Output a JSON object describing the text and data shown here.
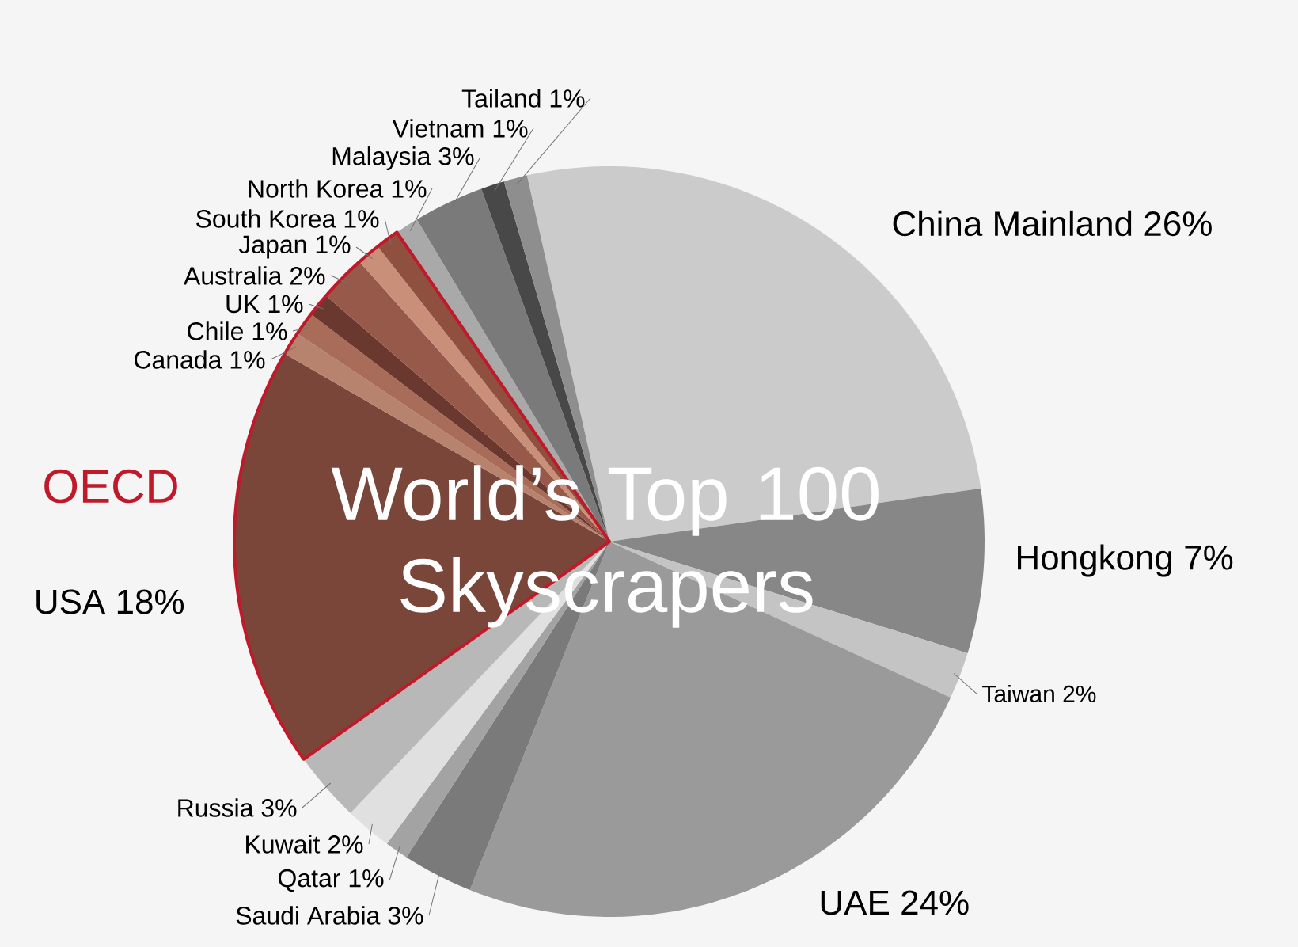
{
  "chart_data": {
    "type": "pie",
    "title": "World’s Top 100 Skyscrapers",
    "categories": [
      "China Mainland",
      "Hongkong",
      "Taiwan",
      "UAE",
      "Saudi Arabia",
      "Qatar",
      "Kuwait",
      "Russia",
      "USA",
      "Canada",
      "Chile",
      "UK",
      "Australia",
      "Japan",
      "South Korea",
      "North Korea",
      "Malaysia",
      "Vietnam",
      "Tailand"
    ],
    "values": [
      26,
      7,
      2,
      24,
      3,
      1,
      2,
      3,
      18,
      1,
      1,
      1,
      2,
      1,
      1,
      1,
      3,
      1,
      1
    ],
    "value_labels": [
      "26%",
      "7%",
      "2%",
      "24%",
      "3%",
      "1%",
      "2%",
      "3%",
      "18%",
      "1%",
      "1%",
      "1%",
      "2%",
      "1%",
      "1%",
      "1%",
      "3%",
      "1%",
      "1%"
    ],
    "colors": [
      "#cbcbcb",
      "#878787",
      "#c4c4c4",
      "#9a9a9a",
      "#7a7a7a",
      "#a3a3a3",
      "#e0e0e0",
      "#b8b8b8",
      "#7b463a",
      "#b7826e",
      "#a86c58",
      "#6b3830",
      "#975a4a",
      "#c98f79",
      "#8f5040",
      "#a9a9a9",
      "#7a7a7a",
      "#484848",
      "#8e8e8e"
    ],
    "annotations": [
      "OECD"
    ]
  }
}
